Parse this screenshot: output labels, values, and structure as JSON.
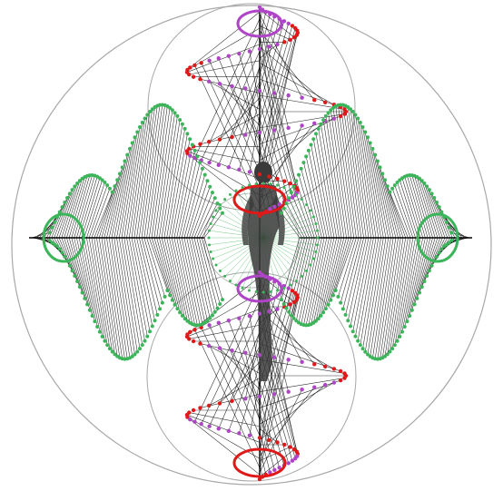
{
  "artwork": {
    "colors": {
      "background": "#ffffff",
      "outline": "#a8a8a8",
      "thread": "#000000",
      "figure": "#3a3a3a",
      "dot_green": "#3cb55a",
      "dot_purple": "#b044c8",
      "dot_red": "#e01818"
    },
    "vertical_helices": [
      "upper-helix",
      "lower-helix"
    ],
    "horizontal_fans": [
      "left-fan",
      "right-fan"
    ]
  }
}
